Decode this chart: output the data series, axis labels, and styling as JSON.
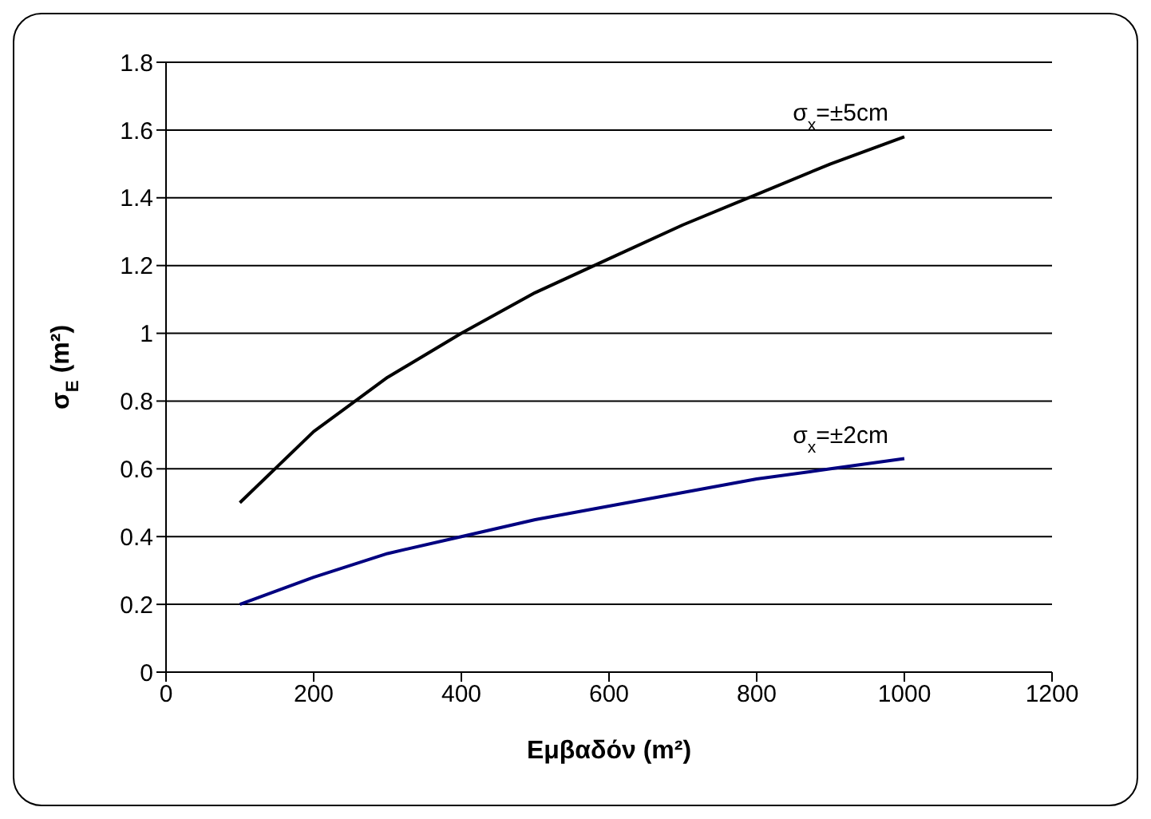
{
  "chart_data": {
    "type": "line",
    "xlabel": "Εμβαδόν (m²)",
    "ylabel": "σ$_{E}$ (m²)",
    "x": [
      100,
      200,
      300,
      400,
      500,
      600,
      700,
      800,
      900,
      1000
    ],
    "series": [
      {
        "name": "σ$_{x}$=±5cm",
        "color": "#000000",
        "values": [
          0.5,
          0.71,
          0.87,
          1.0,
          1.12,
          1.22,
          1.32,
          1.41,
          1.5,
          1.58
        ]
      },
      {
        "name": "σ$_{x}$=±2cm",
        "color": "#000080",
        "values": [
          0.2,
          0.28,
          0.35,
          0.4,
          0.45,
          0.49,
          0.53,
          0.57,
          0.6,
          0.63
        ]
      }
    ],
    "xlim": [
      0,
      1200
    ],
    "xticks": [
      0,
      200,
      400,
      600,
      800,
      1000,
      1200
    ],
    "ylim": [
      0,
      1.8
    ],
    "yticks": [
      0,
      0.2,
      0.4,
      0.6,
      0.8,
      1,
      1.2,
      1.4,
      1.6,
      1.8
    ],
    "grid": "y",
    "legend": false,
    "marker": "none",
    "line_style": "solid"
  }
}
